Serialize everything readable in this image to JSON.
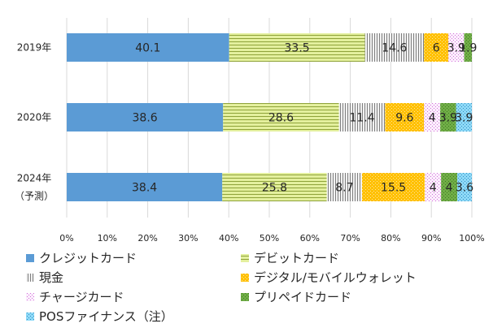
{
  "chart_data": {
    "type": "bar",
    "orientation": "horizontal",
    "stacked": true,
    "categories": [
      "2019年",
      "2020年",
      "2024年|（予測）"
    ],
    "xlim": [
      0,
      100
    ],
    "xticks": [
      "0%",
      "10%",
      "20%",
      "30%",
      "40%",
      "50%",
      "60%",
      "70%",
      "80%",
      "90%",
      "100%"
    ],
    "grid": true,
    "legend_position": "bottom",
    "series": [
      {
        "name": "クレジットカード",
        "values": [
          40.1,
          38.6,
          38.4
        ],
        "color": "#5B9BD5",
        "pattern": "solid"
      },
      {
        "name": "デビットカード",
        "values": [
          33.5,
          28.6,
          25.8
        ],
        "color": "#D9EA8A",
        "pattern": "hlines"
      },
      {
        "name": "現金",
        "values": [
          14.6,
          11.4,
          8.7
        ],
        "color": "#E8E8E8",
        "pattern": "vlines"
      },
      {
        "name": "デジタル/モバイルウォレット",
        "values": [
          6,
          9.6,
          15.5
        ],
        "color": "#FFC000",
        "pattern": "dots"
      },
      {
        "name": "チャージカード",
        "values": [
          3.9,
          4,
          4
        ],
        "color": "#F4DDF6",
        "pattern": "pinkdots"
      },
      {
        "name": "プリペイドカード",
        "values": [
          1.9,
          3.9,
          4
        ],
        "color": "#70AD47",
        "pattern": "greendots"
      },
      {
        "name": "POSファイナンス（注）",
        "values": [
          0,
          3.9,
          3.6
        ],
        "color": "#6FCFF5",
        "pattern": "bluedots"
      }
    ],
    "data_labels": [
      [
        "40.1",
        "33.5",
        "14.6",
        "6",
        "3.9",
        "1.9",
        ""
      ],
      [
        "38.6",
        "28.6",
        "11.4",
        "9.6",
        "4",
        "3.9",
        "3.9"
      ],
      [
        "38.4",
        "25.8",
        "8.7",
        "15.5",
        "4",
        "4",
        "3.6"
      ]
    ]
  }
}
